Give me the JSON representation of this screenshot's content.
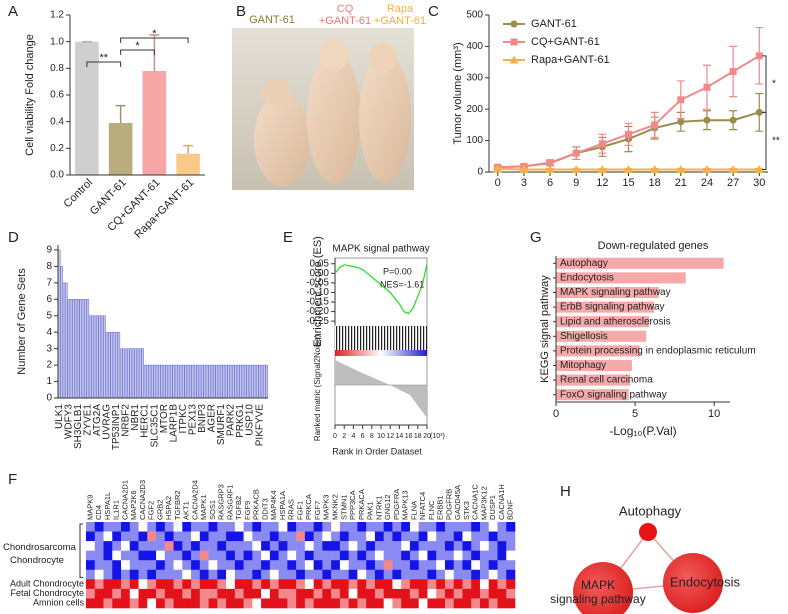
{
  "panel_letters": [
    "A",
    "B",
    "C",
    "D",
    "E",
    "F",
    "G",
    "H"
  ],
  "photo_labels": [
    [
      "GANT-61"
    ],
    [
      "CQ",
      "+GANT-61"
    ],
    [
      "Rapa",
      "+GANT-61"
    ]
  ],
  "network": {
    "nodes": [
      [
        "Autophagy"
      ],
      [
        "MAPK",
        "signaling pathway"
      ],
      [
        "Endocytosis"
      ]
    ]
  },
  "chart_data": [
    {
      "type": "bar",
      "ylabel": "Cell viability Fold change",
      "categories": [
        "Control",
        "GANT-61",
        "CQ+GANT-61",
        "Rapa+GANT-61"
      ],
      "values": [
        1,
        0.39,
        0.78,
        0.16
      ],
      "errors": [
        0,
        0.13,
        0.27,
        0.06
      ],
      "colors": [
        "#cfcfcf",
        "#b9ad7f",
        "#f8a5a5",
        "#f9c98a"
      ],
      "ylim": [
        0,
        1.2
      ],
      "yticks": [
        {
          "value": 0,
          "label": "0.0"
        },
        0.2,
        0.4,
        0.6,
        0.8,
        {
          "value": 1,
          "label": "1.0"
        },
        1.2
      ],
      "annotations": [
        "**",
        "*",
        "*"
      ]
    },
    {
      "type": "line",
      "ylabel": "Tumor volume (mm³)",
      "x": [
        0,
        3,
        6,
        9,
        12,
        15,
        18,
        21,
        24,
        27,
        30
      ],
      "xlim": [
        -1,
        31
      ],
      "xticks": [
        0,
        3,
        6,
        9,
        12,
        15,
        18,
        21,
        24,
        27,
        30
      ],
      "ylim": [
        0,
        500
      ],
      "yticks": [
        0,
        100,
        200,
        300,
        400,
        500
      ],
      "legend": "upper left",
      "series": [
        {
          "name": "GANT-61",
          "color": "#9c8c4c",
          "marker": "circle",
          "values": [
            15,
            18,
            28,
            60,
            80,
            105,
            140,
            160,
            165,
            165,
            190
          ],
          "errors": [
            5,
            5,
            8,
            20,
            30,
            40,
            35,
            30,
            30,
            30,
            60
          ]
        },
        {
          "name": "CQ+GANT-61",
          "color": "#f08a8a",
          "marker": "square",
          "values": [
            15,
            18,
            30,
            60,
            90,
            120,
            150,
            230,
            270,
            320,
            370
          ],
          "errors": [
            5,
            5,
            8,
            20,
            30,
            35,
            40,
            60,
            70,
            80,
            90
          ]
        },
        {
          "name": "Rapa+GANT-61",
          "color": "#f5b04a",
          "marker": "triangle",
          "values": [
            10,
            8,
            8,
            8,
            8,
            8,
            8,
            8,
            8,
            8,
            8
          ],
          "errors": [
            3,
            3,
            3,
            3,
            3,
            3,
            3,
            3,
            3,
            3,
            3
          ]
        }
      ],
      "annotations": [
        "*",
        "**"
      ]
    },
    {
      "type": "bar",
      "ylabel": "Number of Gene Sets",
      "color": "#6b70d0",
      "categories": [
        "ULK1",
        null,
        null,
        null,
        "WDFY3",
        null,
        null,
        null,
        "SH3GLB1",
        null,
        null,
        null,
        "ZYVE1",
        null,
        null,
        null,
        "ATG2A",
        null,
        null,
        null,
        "UVRAG",
        null,
        null,
        null,
        "TP53INP1",
        null,
        null,
        null,
        "NRBF2",
        null,
        null,
        null,
        "NBR1",
        null,
        null,
        null,
        "HERC1",
        null,
        null,
        null,
        "SLC35C1",
        null,
        null,
        null,
        "MTOR",
        null,
        null,
        null,
        "LARP1B",
        null,
        null,
        null,
        "ITPKC",
        null,
        null,
        null,
        "PEX13",
        null,
        null,
        null,
        "BNIP3",
        null,
        null,
        null,
        "AGER",
        null,
        null,
        null,
        "SMURF1",
        null,
        null,
        null,
        "PARK2",
        null,
        null,
        null,
        "PRKG1",
        null,
        null,
        null,
        "USP10",
        null,
        null,
        null,
        "PIKFYVE",
        null,
        null,
        null
      ],
      "values": [
        9,
        8,
        7,
        7,
        6,
        6,
        6,
        6,
        6,
        6,
        6,
        6,
        6,
        5,
        5,
        5,
        5,
        5,
        5,
        5,
        4,
        4,
        4,
        4,
        4,
        4,
        3,
        3,
        3,
        3,
        3,
        3,
        3,
        3,
        3,
        3,
        2,
        2,
        2,
        2,
        2,
        2,
        2,
        2,
        2,
        2,
        2,
        2,
        2,
        2,
        2,
        2,
        2,
        2,
        2,
        2,
        2,
        2,
        2,
        2,
        2,
        2,
        2,
        2,
        2,
        2,
        2,
        2,
        2,
        2,
        2,
        2,
        2,
        2,
        2,
        2,
        2,
        2,
        2,
        2,
        2,
        2,
        2,
        2,
        2,
        2,
        2,
        2
      ],
      "ylim": [
        0,
        9.3
      ],
      "yticks": [
        0,
        1,
        2,
        3,
        4,
        5,
        6,
        7,
        8,
        9
      ]
    },
    {
      "type": "line",
      "title": "MAPK signal pathway",
      "ylabel": "Enrichment score (ES)",
      "secondary_label": "Ranked matric (Signal2Noise)",
      "xlabel": "Rank in Order Dataset",
      "x_unit": "(10³)",
      "x": [
        0,
        1,
        2,
        3,
        4,
        5,
        6,
        7,
        8,
        9,
        10,
        11,
        12,
        13,
        14,
        15,
        16,
        17,
        18,
        19,
        20
      ],
      "xlim": [
        0,
        20
      ],
      "xticks": [
        0,
        2,
        4,
        6,
        8,
        10,
        12,
        14,
        16,
        18,
        20
      ],
      "ylim": [
        -0.27,
        0.08
      ],
      "yticks": [
        0.05,
        {
          "value": 0,
          "label": "0.00"
        },
        -0.05,
        {
          "value": -0.1,
          "label": "-0.10"
        },
        -0.15,
        {
          "value": -0.2,
          "label": "-0.20"
        },
        -0.25
      ],
      "series": [
        {
          "color": "#22dd22",
          "values": [
            0,
            0.03,
            0.045,
            0.04,
            0.035,
            0.03,
            0.02,
            0,
            -0.02,
            -0.04,
            -0.06,
            -0.08,
            -0.1,
            -0.13,
            -0.16,
            -0.2,
            -0.21,
            -0.18,
            -0.12,
            -0.06,
            0.05
          ]
        }
      ],
      "annotations": [
        "P=0.00",
        "NES=-1.61"
      ]
    },
    {
      "type": "bar",
      "orientation": "horizontal",
      "title": "Down-regulated genes",
      "xlabel": "-Log₁₀(P.Val)",
      "ylabel": "KEGG signal pathway",
      "categories": [
        "Autophagy",
        "Endocytosis",
        "MAPK signaling pathway",
        "ErbB signaling pathway",
        "Lipid and atherosclerosis",
        "Shigellosis",
        "Protein processing in endoplasmic reticulum",
        "Mitophagy",
        "Renal cell carcinoma",
        "FoxO signaling pathway"
      ],
      "values": [
        10.6,
        8.2,
        6.5,
        6.2,
        5.9,
        5.7,
        5.3,
        4.8,
        4.7,
        4.6
      ],
      "color": "#f7a8a8",
      "xlim": [
        0,
        11
      ],
      "xticks": [
        0,
        5,
        10
      ]
    },
    {
      "type": "heatmap",
      "columns": [
        "MAPK9",
        "CD4",
        "HSPA1L",
        "IL1R1",
        "CACNA2D1",
        "MAP2K6",
        "CACNA2D3",
        "FGF2",
        "GRB2",
        "HSPA2",
        "TGFBR2",
        "AKT1",
        "CACNA2D4",
        "MAPK1",
        "SOS1",
        "RASGRP3",
        "RASGRF1",
        "TGFB2",
        "FGF9",
        "PRKACB",
        "DDIT3",
        "MAP4K4",
        "HSPA1A",
        "RRAS",
        "FGF1",
        "PRKCA",
        "FGF7",
        "MAPK3",
        "MKNK2",
        "STMN1",
        "PPP3CA",
        "PRKACA",
        "PAK1",
        "NTRK1",
        "GNG12",
        "PDGFRA",
        "MAPK13",
        "FLNA",
        "NFATC4",
        "FLNC",
        "ERBB1",
        "PDGFRB",
        "GADD45A",
        "STK3",
        "CACNA1C",
        "MAP3K12",
        "DUSP1",
        "CACNA1H",
        "BDNF"
      ],
      "rows": [
        null,
        null,
        null,
        null,
        null,
        null,
        "Adult Chondrocyte",
        "Fetal Chondrocyte",
        "Amnion cells"
      ],
      "row_group": [
        "Chondrosarcoma",
        "Chondrocyte"
      ],
      "colors": [
        "#1414e6",
        "#ffffff",
        "#e3121a"
      ],
      "values": [
        [
          -1,
          -2,
          -1,
          -1,
          -2,
          -1,
          0,
          -1,
          -2,
          -1,
          0,
          -2,
          -1,
          -1,
          -2,
          -1,
          -1,
          0,
          -1,
          -2,
          -1,
          -1,
          0,
          -2,
          -1,
          -1,
          -2,
          -1,
          0,
          -1,
          -1,
          -2,
          -1,
          -1,
          -2,
          -1,
          -2,
          0,
          -1,
          -1,
          -2,
          -1,
          -1,
          -1,
          -2,
          -1,
          0,
          -1,
          -2
        ],
        [
          -2,
          -1,
          0,
          -2,
          -1,
          -1,
          -2,
          1,
          -1,
          -2,
          -1,
          -1,
          0,
          -2,
          -1,
          -1,
          -2,
          -2,
          0,
          -1,
          -1,
          -2,
          -1,
          -1,
          1,
          -2,
          -1,
          0,
          -1,
          -2,
          -1,
          -1,
          0,
          -2,
          -1,
          -2,
          -1,
          -1,
          -2,
          0,
          -1,
          -1,
          -2,
          0,
          -1,
          -1,
          -2,
          -1,
          -1
        ],
        [
          0,
          -1,
          -2,
          -1,
          0,
          -2,
          -1,
          -1,
          -1,
          1,
          -2,
          -1,
          -2,
          -1,
          -1,
          -2,
          -1,
          -1,
          -1,
          0,
          -2,
          -1,
          -2,
          -1,
          -1,
          0,
          -1,
          -2,
          -2,
          -1,
          0,
          -1,
          -2,
          -1,
          -1,
          -1,
          0,
          -2,
          -1,
          -1,
          -1,
          -2,
          -1,
          -2,
          -1,
          0,
          -1,
          -2,
          -1
        ],
        [
          -1,
          -1,
          -2,
          0,
          -1,
          -1,
          -2,
          -2,
          0,
          -1,
          -1,
          -2,
          -1,
          1,
          -1,
          -1,
          -2,
          -1,
          -2,
          -1,
          0,
          -2,
          -1,
          0,
          -1,
          -2,
          -1,
          -1,
          -1,
          -2,
          -1,
          -2,
          -1,
          0,
          -1,
          -1,
          -2,
          -1,
          0,
          -2,
          -1,
          -1,
          0,
          -1,
          -2,
          -1,
          -1,
          -2,
          0
        ],
        [
          -2,
          -1,
          -1,
          -2,
          0,
          -1,
          -1,
          -1,
          -2,
          -1,
          0,
          -1,
          -2,
          -1,
          0,
          -1,
          -1,
          -2,
          -1,
          -1,
          -2,
          -1,
          -1,
          -2,
          -1,
          0,
          -2,
          -1,
          -2,
          0,
          -1,
          -1,
          -2,
          -1,
          1,
          -1,
          -1,
          -2,
          -1,
          -1,
          0,
          -2,
          -1,
          -2,
          0,
          -1,
          -2,
          -1,
          -1
        ],
        [
          -1,
          0,
          -1,
          -2,
          -1,
          -2,
          -1,
          -2,
          -1,
          -1,
          -1,
          0,
          -1,
          -2,
          -1,
          -2,
          0,
          -1,
          -1,
          -2,
          -1,
          0,
          -1,
          -1,
          -2,
          -1,
          -1,
          -2,
          -1,
          -1,
          -2,
          0,
          -1,
          -2,
          -1,
          -2,
          -1,
          -1,
          -1,
          -2,
          -1,
          0,
          -1,
          -1,
          -2,
          -1,
          0,
          -1,
          -2
        ],
        [
          2,
          1,
          2,
          2,
          1,
          2,
          0,
          1,
          2,
          2,
          1,
          2,
          1,
          2,
          2,
          1,
          0,
          2,
          2,
          1,
          2,
          1,
          2,
          2,
          1,
          0,
          2,
          1,
          2,
          2,
          1,
          2,
          1,
          2,
          2,
          0,
          1,
          2,
          2,
          1,
          2,
          1,
          2,
          1,
          2,
          0,
          2,
          1,
          2
        ],
        [
          1,
          2,
          2,
          1,
          2,
          0,
          2,
          2,
          1,
          2,
          2,
          1,
          2,
          1,
          1,
          2,
          2,
          1,
          2,
          2,
          0,
          2,
          1,
          1,
          2,
          2,
          1,
          2,
          1,
          2,
          0,
          2,
          2,
          1,
          2,
          2,
          2,
          1,
          2,
          0,
          1,
          2,
          1,
          2,
          2,
          1,
          2,
          2,
          1
        ],
        [
          2,
          2,
          1,
          2,
          2,
          1,
          2,
          0,
          2,
          1,
          2,
          2,
          2,
          1,
          2,
          1,
          2,
          2,
          1,
          0,
          2,
          2,
          2,
          1,
          2,
          1,
          2,
          2,
          2,
          1,
          2,
          1,
          2,
          2,
          0,
          1,
          2,
          2,
          0,
          2,
          2,
          1,
          2,
          2,
          1,
          2,
          1,
          2,
          2
        ]
      ]
    }
  ]
}
